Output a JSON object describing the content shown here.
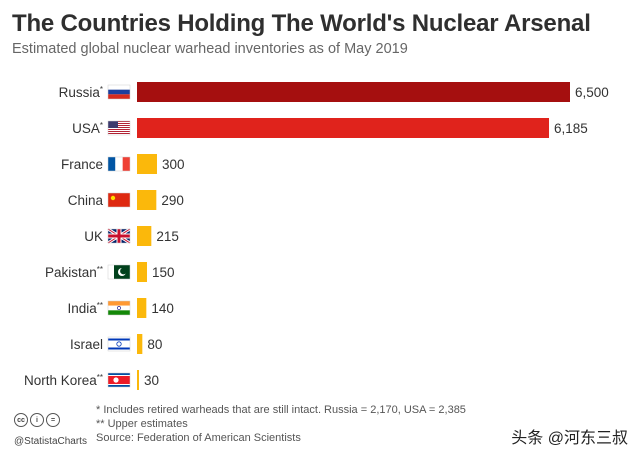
{
  "header": {
    "title": "The Countries Holding The World's Nuclear Arsenal",
    "subtitle": "Estimated global nuclear warhead inventories as of May 2019"
  },
  "chart_data": {
    "type": "bar",
    "orientation": "horizontal",
    "title": "The Countries Holding The World's Nuclear Arsenal",
    "subtitle": "Estimated global nuclear warhead inventories as of May 2019",
    "xlim": [
      0,
      6500
    ],
    "grid": false,
    "categories": [
      {
        "name": "Russia",
        "mark": "*",
        "value": 6500,
        "value_label": "6,500",
        "color": "#a50f0f",
        "flag": "russia"
      },
      {
        "name": "USA",
        "mark": "*",
        "value": 6185,
        "value_label": "6,185",
        "color": "#e0231c",
        "flag": "usa"
      },
      {
        "name": "France",
        "mark": "",
        "value": 300,
        "value_label": "300",
        "color": "#fbb80b",
        "flag": "france"
      },
      {
        "name": "China",
        "mark": "",
        "value": 290,
        "value_label": "290",
        "color": "#fbb80b",
        "flag": "china"
      },
      {
        "name": "UK",
        "mark": "",
        "value": 215,
        "value_label": "215",
        "color": "#fbb80b",
        "flag": "uk"
      },
      {
        "name": "Pakistan",
        "mark": "**",
        "value": 150,
        "value_label": "150",
        "color": "#fbb80b",
        "flag": "pakistan"
      },
      {
        "name": "India",
        "mark": "**",
        "value": 140,
        "value_label": "140",
        "color": "#fbb80b",
        "flag": "india"
      },
      {
        "name": "Israel",
        "mark": "",
        "value": 80,
        "value_label": "80",
        "color": "#fbb80b",
        "flag": "israel"
      },
      {
        "name": "North Korea",
        "mark": "**",
        "value": 30,
        "value_label": "30",
        "color": "#fbb80b",
        "flag": "north-korea"
      }
    ]
  },
  "footer": {
    "note1": "*   Includes retired warheads that are still intact. Russia = 2,170, USA = 2,385",
    "note2": "** Upper estimates",
    "source": "Source: Federation of American Scientists",
    "brand": "@StatistaCharts",
    "cc_badges": [
      "cc",
      "i",
      "="
    ],
    "watermark": "头条 @河东三叔"
  }
}
